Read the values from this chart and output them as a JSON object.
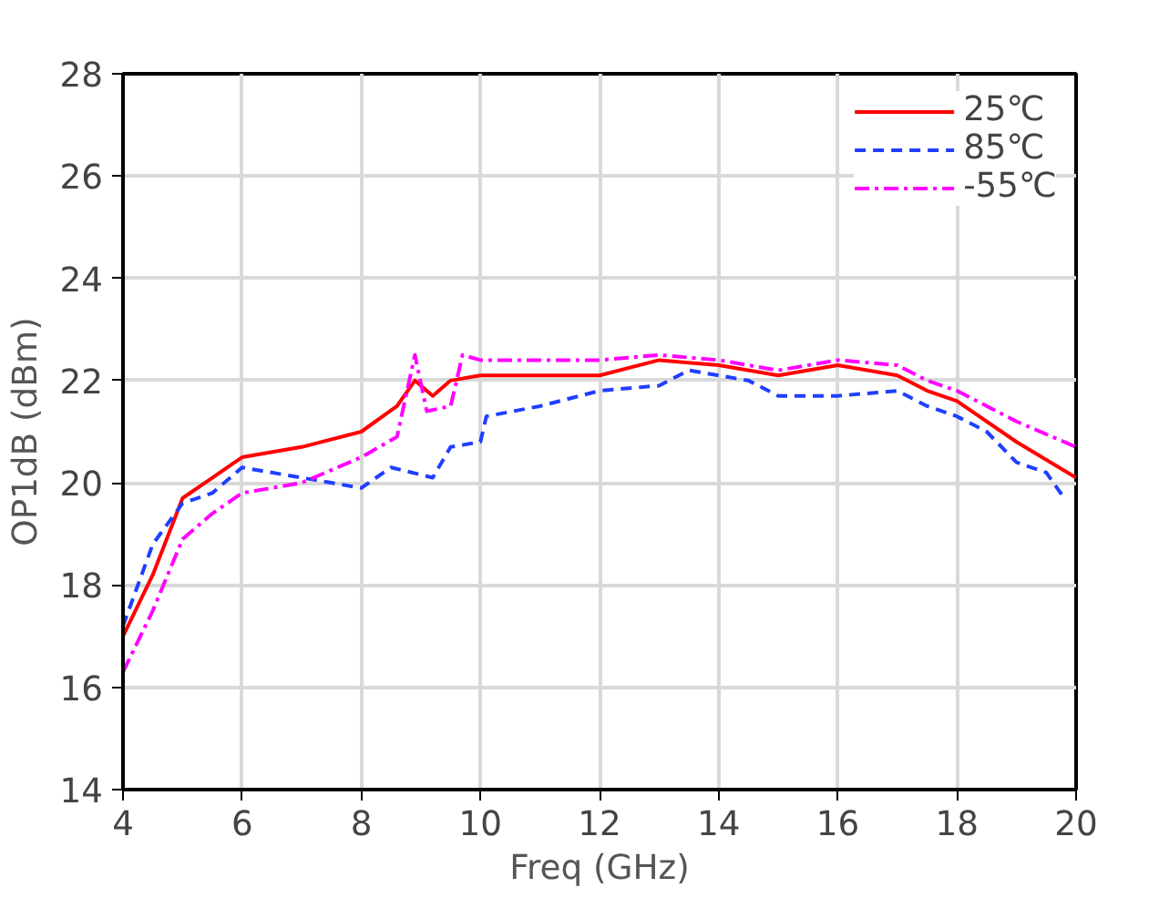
{
  "chart_data": {
    "type": "line",
    "xlabel": "Freq (GHz)",
    "ylabel": "OP1dB (dBm)",
    "xlim": [
      4,
      20
    ],
    "xticks": [
      4,
      6,
      8,
      10,
      12,
      14,
      16,
      18,
      20
    ],
    "ylim": [
      14,
      28
    ],
    "yticks": [
      14,
      16,
      18,
      20,
      22,
      24,
      26,
      28
    ],
    "grid": true,
    "legend": "top right",
    "marker": "none",
    "series": [
      {
        "name": "25℃",
        "color": "#ff0000",
        "line_style": "solid",
        "x": [
          4,
          4.5,
          5,
          5.5,
          6,
          7,
          8,
          8.6,
          8.9,
          9.2,
          9.5,
          10,
          11,
          12,
          13,
          14,
          15,
          16,
          17,
          17.5,
          18,
          19,
          20
        ],
        "values": [
          17.0,
          18.2,
          19.7,
          20.1,
          20.5,
          20.7,
          21.0,
          21.5,
          22.0,
          21.7,
          22.0,
          22.1,
          22.1,
          22.1,
          22.4,
          22.3,
          22.1,
          22.3,
          22.1,
          21.8,
          21.6,
          20.8,
          20.1
        ]
      },
      {
        "name": "85℃",
        "color": "#1f3fff",
        "line_style": "dashed",
        "x": [
          4,
          4.5,
          5,
          5.5,
          6,
          7,
          8,
          8.5,
          9.2,
          9.5,
          10,
          10.1,
          11,
          12,
          13,
          13.5,
          14,
          14.5,
          15,
          16,
          17,
          17.5,
          18,
          18.5,
          19,
          19.5,
          19.8
        ],
        "values": [
          17.2,
          18.8,
          19.6,
          19.8,
          20.3,
          20.1,
          19.9,
          20.3,
          20.1,
          20.7,
          20.8,
          21.3,
          21.5,
          21.8,
          21.9,
          22.2,
          22.1,
          22.0,
          21.7,
          21.7,
          21.8,
          21.5,
          21.3,
          21.0,
          20.4,
          20.2,
          19.7
        ]
      },
      {
        "name": "-55℃",
        "color": "#ff00ff",
        "line_style": "dashdot",
        "x": [
          4,
          4.5,
          5,
          5.5,
          6,
          7,
          8,
          8.6,
          8.9,
          9.1,
          9.5,
          9.7,
          10,
          11,
          12,
          13,
          14,
          15,
          16,
          17,
          17.5,
          18,
          19,
          20
        ],
        "values": [
          16.3,
          17.5,
          18.9,
          19.4,
          19.8,
          20.0,
          20.5,
          20.9,
          22.5,
          21.4,
          21.5,
          22.5,
          22.4,
          22.4,
          22.4,
          22.5,
          22.4,
          22.2,
          22.4,
          22.3,
          22.0,
          21.8,
          21.2,
          20.7
        ]
      }
    ]
  }
}
